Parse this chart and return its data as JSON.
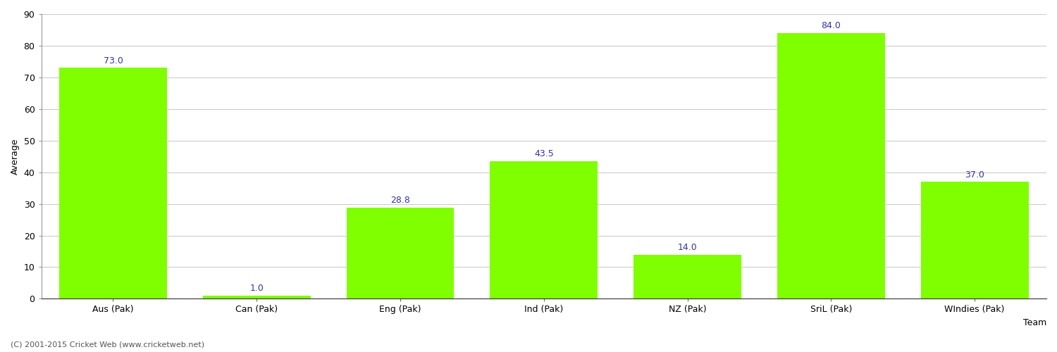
{
  "categories": [
    "Aus (Pak)",
    "Can (Pak)",
    "Eng (Pak)",
    "Ind (Pak)",
    "NZ (Pak)",
    "SriL (Pak)",
    "WIndies (Pak)"
  ],
  "values": [
    73.0,
    1.0,
    28.8,
    43.5,
    14.0,
    84.0,
    37.0
  ],
  "bar_color": "#7fff00",
  "bar_edge_color": "#7fff00",
  "label_color": "#3333aa",
  "xlabel": "Team",
  "ylabel": "Average",
  "ylim": [
    0,
    90
  ],
  "yticks": [
    0,
    10,
    20,
    30,
    40,
    50,
    60,
    70,
    80,
    90
  ],
  "grid_color": "#cccccc",
  "background_color": "#ffffff",
  "footnote": "(C) 2001-2015 Cricket Web (www.cricketweb.net)",
  "label_fontsize": 9,
  "axis_label_fontsize": 9,
  "tick_fontsize": 9,
  "footnote_fontsize": 8,
  "bar_width": 0.75
}
